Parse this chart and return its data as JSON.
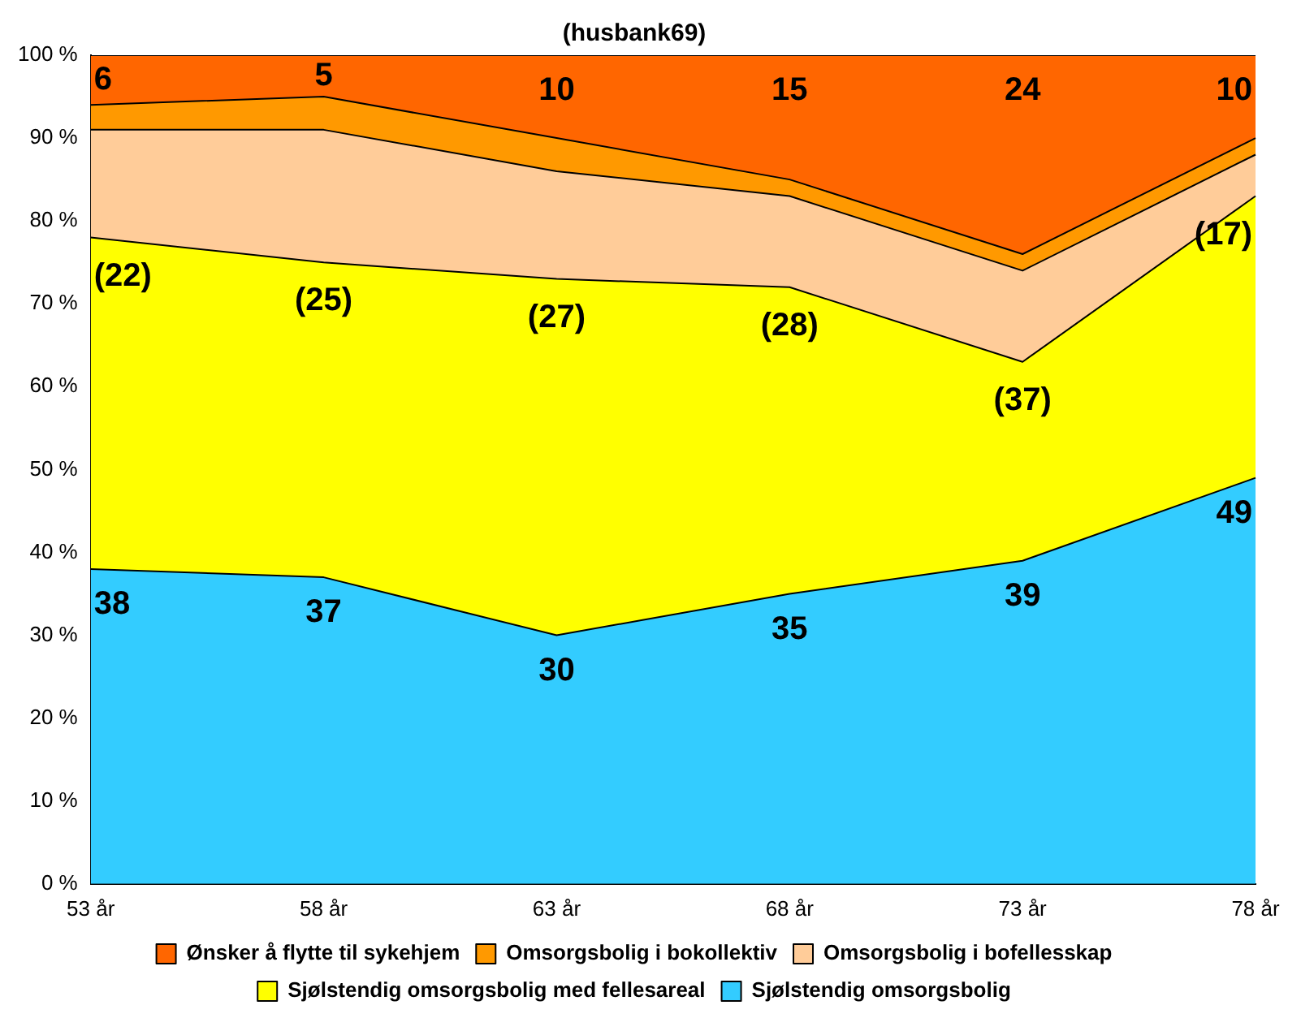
{
  "chart_data": {
    "type": "area",
    "title": "(husbank69)",
    "categories": [
      "53 år",
      "58 år",
      "63 år",
      "68 år",
      "73 år",
      "78 år"
    ],
    "stacked": true,
    "legend": "bottom",
    "marker": "none",
    "grid": false,
    "ylim": [
      0,
      100
    ],
    "yticks": [
      {
        "value": 0,
        "label": "0 %"
      },
      {
        "value": 10,
        "label": "10 %"
      },
      {
        "value": 20,
        "label": "20 %"
      },
      {
        "value": 30,
        "label": "30 %"
      },
      {
        "value": 40,
        "label": "40 %"
      },
      {
        "value": 50,
        "label": "50 %"
      },
      {
        "value": 60,
        "label": "60 %"
      },
      {
        "value": 70,
        "label": "70 %"
      },
      {
        "value": 80,
        "label": "80 %"
      },
      {
        "value": 90,
        "label": "90 %"
      },
      {
        "value": 100,
        "label": "100 %"
      }
    ],
    "series": [
      {
        "name": "Sjølstendig omsorgsbolig",
        "color": "#33ccff",
        "values": [
          38,
          37,
          30,
          35,
          39,
          49
        ],
        "value_labels": [
          "38",
          "37",
          "30",
          "35",
          "39",
          "49"
        ]
      },
      {
        "name": "Sjølstendig omsorgsbolig med fellesareal",
        "color": "#ffff00",
        "values": [
          40,
          38,
          43,
          37,
          24,
          34
        ]
      },
      {
        "name": "Omsorgsbolig i bofellesskap",
        "color": "#ffcc99",
        "values": [
          13,
          16,
          13,
          11,
          11,
          5
        ]
      },
      {
        "name": "Omsorgsbolig i bokollektiv",
        "color": "#ff9900",
        "values": [
          3,
          4,
          4,
          2,
          2,
          2
        ]
      },
      {
        "name": "Ønsker å flytte til sykehjem",
        "color": "#ff6600",
        "values": [
          6,
          5,
          10,
          15,
          24,
          10
        ],
        "value_labels": [
          "6",
          "5",
          "10",
          "15",
          "24",
          "10"
        ]
      }
    ],
    "annotations": [
      "(22)",
      "(25)",
      "(27)",
      "(28)",
      "(37)",
      "(17)"
    ]
  }
}
